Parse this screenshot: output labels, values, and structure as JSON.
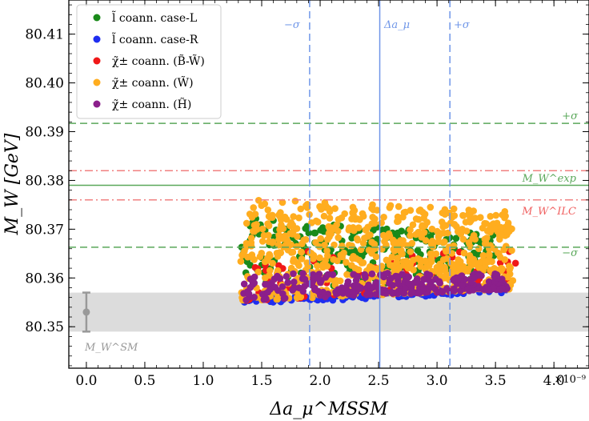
{
  "chart_data": {
    "type": "scatter",
    "xlabel": "Δa_μ^MSSM",
    "ylabel": "M_W [GeV]",
    "x_offset_label": "×10⁻⁹",
    "xlim": [
      -0.15,
      4.3
    ],
    "ylim": [
      80.3415,
      80.417
    ],
    "xticks": [
      0.0,
      0.5,
      1.0,
      1.5,
      2.0,
      2.5,
      3.0,
      3.5,
      4.0
    ],
    "xtick_labels": [
      "0.0",
      "0.5",
      "1.0",
      "1.5",
      "2.0",
      "2.5",
      "3.0",
      "3.5",
      "4.0"
    ],
    "yticks": [
      80.35,
      80.36,
      80.37,
      80.38,
      80.39,
      80.4,
      80.41
    ],
    "ytick_labels": [
      "80.35",
      "80.36",
      "80.37",
      "80.38",
      "80.39",
      "80.40",
      "80.41"
    ],
    "reference_lines": {
      "vertical": [
        {
          "label": "−σ",
          "x": 1.91,
          "style": "dashed",
          "color": "#6f96e8"
        },
        {
          "label": "Δa_μ",
          "x": 2.51,
          "style": "solid",
          "color": "#6f96e8"
        },
        {
          "label": "+σ",
          "x": 3.11,
          "style": "dashed",
          "color": "#6f96e8"
        }
      ],
      "horizontal": [
        {
          "label": "+σ",
          "y": 80.3917,
          "style": "dashed",
          "color": "#5aa85a"
        },
        {
          "label": "M_W^exp",
          "y": 80.379,
          "style": "solid",
          "color": "#5aa85a"
        },
        {
          "label": "−σ",
          "y": 80.3663,
          "style": "dashed",
          "color": "#5aa85a"
        },
        {
          "label": "",
          "y": 80.382,
          "style": "dashdot",
          "color": "#f08080"
        },
        {
          "label": "M_W^ILC",
          "y": 80.376,
          "style": "dashdot",
          "color": "#f08080"
        }
      ]
    },
    "sm_prediction": {
      "label": "M_W^SM",
      "x": 0.0,
      "y": 80.353,
      "error": 0.004,
      "band": [
        80.349,
        80.357
      ],
      "color": "#999999"
    },
    "series": [
      {
        "name": "l̃ coann. case-L",
        "color": "#1a8a1a",
        "x_range": [
          1.32,
          3.5
        ],
        "y_range": [
          80.3555,
          80.3725
        ]
      },
      {
        "name": "l̃ coann. case-R",
        "color": "#1f2ef0",
        "x_range": [
          1.32,
          3.6
        ],
        "y_range": [
          80.3545,
          80.358
        ]
      },
      {
        "name": "χ̃± coann. (B̃-W̃)",
        "color": "#f01818",
        "x_range": [
          1.32,
          3.68
        ],
        "y_range": [
          80.355,
          80.366
        ]
      },
      {
        "name": "χ̃± coann. (W̃)",
        "color": "#ffad1f",
        "x_range": [
          1.32,
          3.65
        ],
        "y_range": [
          80.355,
          80.3765
        ]
      },
      {
        "name": "χ̃± coann. (H̃)",
        "color": "#8b1f8b",
        "x_range": [
          1.32,
          3.6
        ],
        "y_range": [
          80.355,
          80.361
        ]
      }
    ]
  }
}
